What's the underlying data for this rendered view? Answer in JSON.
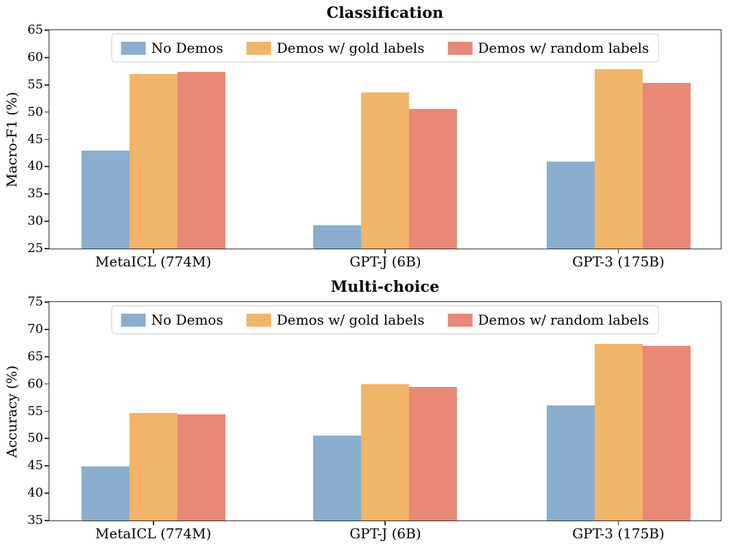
{
  "page": {
    "background": "#ffffff",
    "spine_color": "#2b2b2b",
    "legend_border_color": "#cccccc"
  },
  "legend": {
    "labels": [
      "No Demos",
      "Demos w/ gold labels",
      "Demos w/ random labels"
    ]
  },
  "colors": {
    "no_demos": "#89AECE",
    "gold_labels": "#F1B569",
    "random_labels": "#E98876"
  },
  "chart_data": [
    {
      "type": "bar",
      "title": "Classification",
      "ylabel": "Macro-F1 (%)",
      "xlabel": "",
      "ylim": [
        25,
        65
      ],
      "yticks": [
        65,
        60,
        55,
        50,
        45,
        40,
        35,
        30,
        25
      ],
      "grid": false,
      "legend_position": "upper center",
      "categories": [
        "MetaICL (774M)",
        "GPT-J (6B)",
        "GPT-3 (175B)"
      ],
      "series": [
        {
          "name": "No Demos",
          "color": "#89AECE",
          "values": [
            42.9,
            29.3,
            40.9
          ]
        },
        {
          "name": "Demos w/ gold labels",
          "color": "#F1B569",
          "values": [
            57.0,
            53.6,
            57.8
          ]
        },
        {
          "name": "Demos w/ random labels",
          "color": "#E98876",
          "values": [
            57.4,
            50.6,
            55.3
          ]
        }
      ]
    },
    {
      "type": "bar",
      "title": "Multi-choice",
      "ylabel": "Accuracy (%)",
      "xlabel": "",
      "ylim": [
        35,
        75
      ],
      "yticks": [
        75,
        70,
        65,
        60,
        55,
        50,
        45,
        40,
        35
      ],
      "grid": false,
      "legend_position": "upper center",
      "categories": [
        "MetaICL (774M)",
        "GPT-J (6B)",
        "GPT-3 (175B)"
      ],
      "series": [
        {
          "name": "No Demos",
          "color": "#89AECE",
          "values": [
            44.9,
            50.5,
            56.1
          ]
        },
        {
          "name": "Demos w/ gold labels",
          "color": "#F1B569",
          "values": [
            54.7,
            59.9,
            67.4
          ]
        },
        {
          "name": "Demos w/ random labels",
          "color": "#E98876",
          "values": [
            54.5,
            59.4,
            67.0
          ]
        }
      ]
    }
  ]
}
